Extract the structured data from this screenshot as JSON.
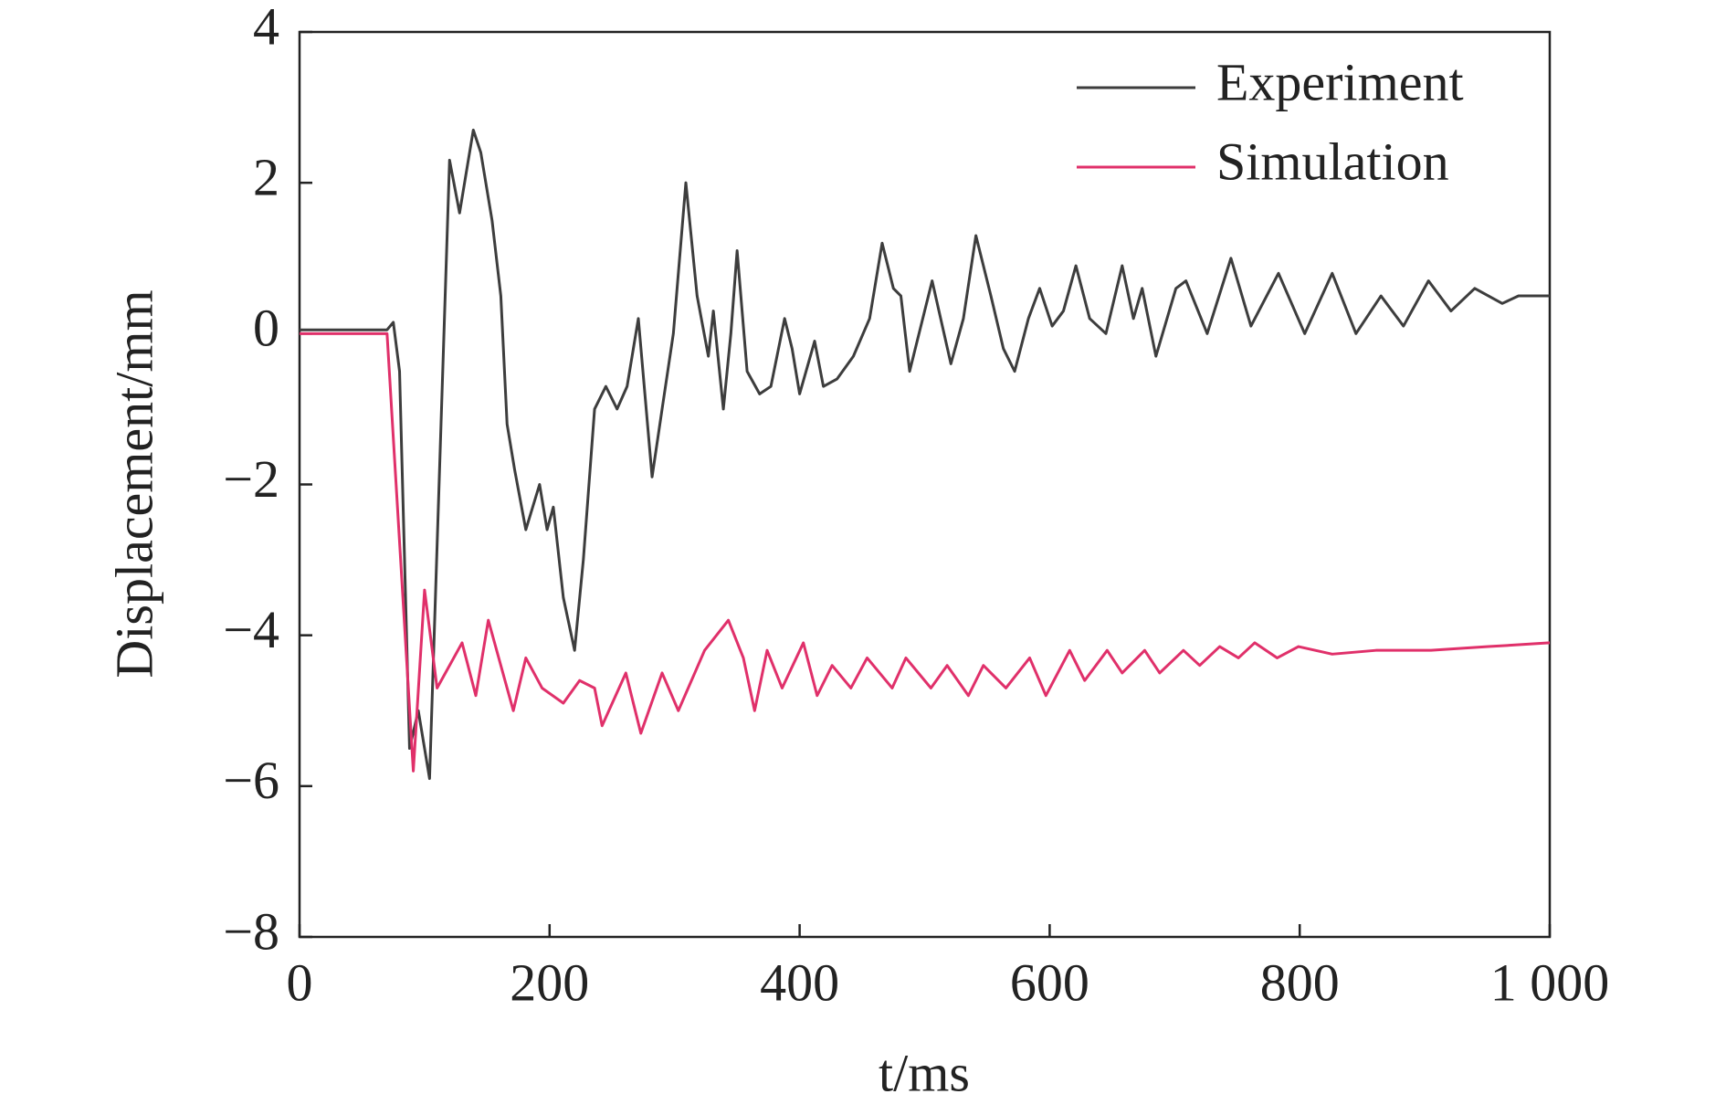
{
  "chart_data": {
    "type": "line",
    "xlabel": "t/ms",
    "ylabel": "Displacement/mm",
    "xlim": [
      0,
      1000
    ],
    "ylim": [
      -8,
      4
    ],
    "xticks": [
      0,
      200,
      400,
      600,
      800,
      {
        "value": 1000,
        "label": "1 000"
      }
    ],
    "yticks": [
      4,
      2,
      0,
      {
        "value": -2,
        "label": "−2"
      },
      {
        "value": -4,
        "label": "−4"
      },
      {
        "value": -6,
        "label": "−6"
      },
      {
        "value": -8,
        "label": "−8"
      }
    ],
    "legend": "upper right",
    "series": [
      {
        "name": "Experiment",
        "color": "#3d3d3d",
        "x": [
          0,
          70,
          75,
          80,
          88,
          95,
          104,
          120,
          128,
          137,
          139,
          145,
          154,
          161,
          166,
          172,
          181,
          192,
          198,
          203,
          211,
          220,
          227,
          236,
          245,
          254,
          262,
          271,
          282,
          290,
          299,
          309,
          318,
          327,
          331,
          339,
          345,
          350,
          358,
          368,
          377,
          388,
          394,
          400,
          412,
          419,
          430,
          443,
          456,
          466,
          475,
          481,
          488,
          500,
          506,
          521,
          531,
          541,
          553,
          563,
          572,
          583,
          592,
          602,
          611,
          621,
          632,
          645,
          658,
          667,
          674,
          685,
          701,
          709,
          726,
          745,
          761,
          783,
          804,
          826,
          845,
          865,
          883,
          903,
          921,
          940,
          962,
          975,
          1000
        ],
        "values": [
          0.05,
          0.05,
          0.15,
          -0.5,
          -5.5,
          -5.0,
          -5.9,
          2.3,
          1.6,
          2.5,
          2.7,
          2.4,
          1.5,
          0.5,
          -1.2,
          -1.8,
          -2.6,
          -2.0,
          -2.6,
          -2.3,
          -3.5,
          -4.2,
          -3.0,
          -1.0,
          -0.7,
          -1.0,
          -0.7,
          0.2,
          -1.9,
          -1.0,
          0.0,
          2.0,
          0.5,
          -0.3,
          0.3,
          -1.0,
          0.0,
          1.1,
          -0.5,
          -0.8,
          -0.7,
          0.2,
          -0.2,
          -0.8,
          -0.1,
          -0.7,
          -0.6,
          -0.3,
          0.2,
          1.2,
          0.6,
          0.5,
          -0.5,
          0.3,
          0.7,
          -0.4,
          0.2,
          1.3,
          0.5,
          -0.2,
          -0.5,
          0.2,
          0.6,
          0.1,
          0.3,
          0.9,
          0.2,
          0.0,
          0.9,
          0.2,
          0.6,
          -0.3,
          0.6,
          0.7,
          0.0,
          1.0,
          0.1,
          0.8,
          0.0,
          0.8,
          0.0,
          0.5,
          0.1,
          0.7,
          0.3,
          0.6,
          0.4,
          0.5,
          0.5
        ]
      },
      {
        "name": "Simulation",
        "color": "#e0306a",
        "x": [
          0,
          70,
          91,
          100,
          110,
          130,
          141,
          151,
          171,
          181,
          194,
          211,
          224,
          236,
          242,
          261,
          273,
          290,
          303,
          324,
          343,
          355,
          364,
          374,
          386,
          403,
          414,
          426,
          441,
          454,
          474,
          485,
          505,
          518,
          535,
          547,
          565,
          584,
          597,
          616,
          628,
          646,
          658,
          676,
          688,
          707,
          720,
          736,
          751,
          764,
          782,
          799,
          826,
          861,
          905,
          951,
          1000
        ],
        "values": [
          0,
          0,
          -5.8,
          -3.4,
          -4.7,
          -4.1,
          -4.8,
          -3.8,
          -5.0,
          -4.3,
          -4.7,
          -4.9,
          -4.6,
          -4.7,
          -5.2,
          -4.5,
          -5.3,
          -4.5,
          -5.0,
          -4.2,
          -3.8,
          -4.3,
          -5.0,
          -4.2,
          -4.7,
          -4.1,
          -4.8,
          -4.4,
          -4.7,
          -4.3,
          -4.7,
          -4.3,
          -4.7,
          -4.4,
          -4.8,
          -4.4,
          -4.7,
          -4.3,
          -4.8,
          -4.2,
          -4.6,
          -4.2,
          -4.5,
          -4.2,
          -4.5,
          -4.2,
          -4.4,
          -4.15,
          -4.3,
          -4.1,
          -4.3,
          -4.15,
          -4.25,
          -4.2,
          -4.2,
          -4.15,
          -4.1
        ]
      }
    ]
  }
}
